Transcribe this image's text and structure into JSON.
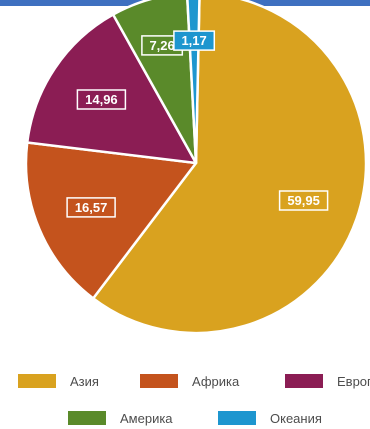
{
  "colors": {
    "top_bar": "#3e70c0",
    "asia": "#d9a21f",
    "africa": "#c4531d",
    "europe": "#8b1d54",
    "america": "#5a8a2a",
    "oceania": "#1e96cf"
  },
  "chart_data": {
    "type": "pie",
    "title": "",
    "slices": [
      {
        "label": "Азия",
        "value": 59.95,
        "value_label": "59,95",
        "color": "#d9a21f"
      },
      {
        "label": "Африка",
        "value": 16.57,
        "value_label": "16,57",
        "color": "#c4531d"
      },
      {
        "label": "Европа",
        "value": 14.96,
        "value_label": "14,96",
        "color": "#8b1d54"
      },
      {
        "label": "Америка",
        "value": 7.26,
        "value_label": "7,26",
        "color": "#5a8a2a"
      },
      {
        "label": "Океания",
        "value": 1.17,
        "value_label": "1,17",
        "color": "#1e96cf"
      }
    ],
    "legend_position": "bottom"
  },
  "legend": {
    "asia": "Азия",
    "africa": "Африка",
    "europe": "Европа",
    "america": "Америка",
    "oceania": "Океания"
  }
}
